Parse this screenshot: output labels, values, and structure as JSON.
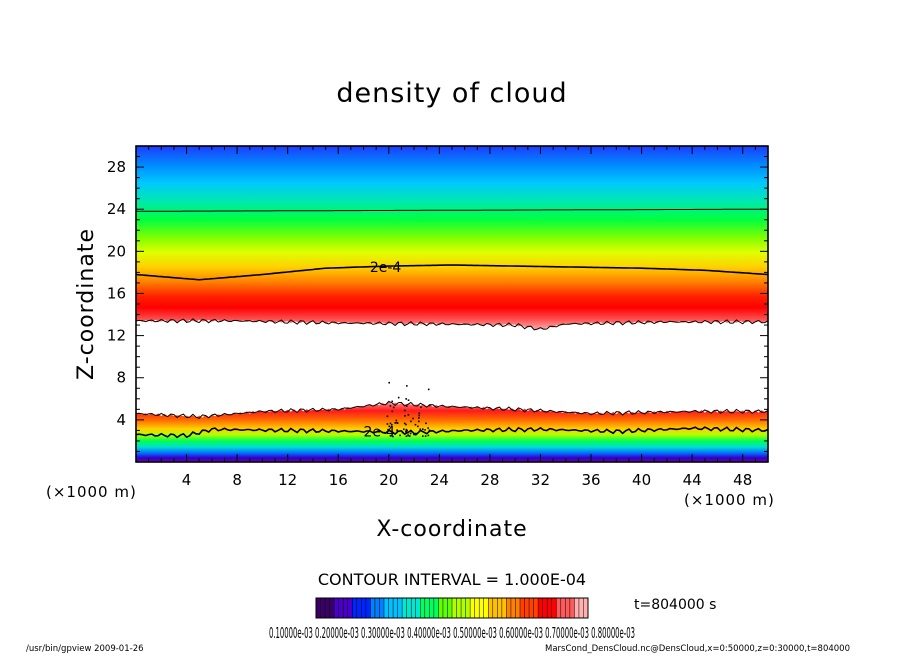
{
  "chart_data": {
    "type": "heatmap",
    "title": "density of cloud",
    "xlabel": "X-coordinate",
    "ylabel": "Z-coordinate",
    "x_unit": "(×1000 m)",
    "y_unit": "(×1000 m)",
    "xlim": [
      0,
      50
    ],
    "ylim": [
      0,
      30
    ],
    "x_ticks": [
      4,
      8,
      12,
      16,
      20,
      24,
      28,
      32,
      36,
      40,
      44,
      48
    ],
    "y_ticks": [
      4,
      8,
      12,
      16,
      20,
      24,
      28
    ],
    "contour_interval": "CONTOUR INTERVAL = 1.000E-04",
    "contour_labels": [
      {
        "text": "2e-4",
        "x": 18.5,
        "z": 18.5
      },
      {
        "text": "2e-4",
        "x": 18.0,
        "z": 2.9
      }
    ],
    "upper_band": {
      "contour_2e4_z": [
        [
          0,
          17.8
        ],
        [
          5,
          17.3
        ],
        [
          10,
          17.8
        ],
        [
          15,
          18.4
        ],
        [
          20,
          18.6
        ],
        [
          25,
          18.7
        ],
        [
          30,
          18.6
        ],
        [
          35,
          18.5
        ],
        [
          40,
          18.4
        ],
        [
          45,
          18.2
        ],
        [
          50,
          17.8
        ]
      ],
      "top_contour_z": 23.8,
      "bottom_edge_z": [
        [
          0,
          13.4
        ],
        [
          8,
          13.4
        ],
        [
          16,
          13.2
        ],
        [
          24,
          13.1
        ],
        [
          30,
          13.0
        ],
        [
          32,
          12.6
        ],
        [
          34,
          13.1
        ],
        [
          42,
          13.3
        ],
        [
          50,
          13.3
        ]
      ],
      "max_z": 15.5
    },
    "lower_band": {
      "top_edge_z": [
        [
          0,
          4.6
        ],
        [
          5,
          4.3
        ],
        [
          10,
          4.8
        ],
        [
          16,
          5.0
        ],
        [
          20,
          5.6
        ],
        [
          24,
          5.3
        ],
        [
          30,
          5.0
        ],
        [
          36,
          4.6
        ],
        [
          44,
          4.8
        ],
        [
          50,
          4.8
        ]
      ],
      "contour_2e4_z": [
        [
          0,
          2.6
        ],
        [
          4,
          2.5
        ],
        [
          6,
          3.1
        ],
        [
          12,
          3.0
        ],
        [
          18,
          2.9
        ],
        [
          22,
          2.8
        ],
        [
          26,
          3.0
        ],
        [
          32,
          3.1
        ],
        [
          38,
          2.9
        ],
        [
          44,
          3.2
        ],
        [
          50,
          3.0
        ]
      ],
      "max_z": 3.8
    },
    "colorbar": {
      "labels": "0.10000e-03 0.20000e-03 0.30000e-03 0.40000e-03 0.50000e-03 0.60000e-03 0.70000e-03 0.80000e-03",
      "colors": [
        "#3b0068",
        "#4a00c8",
        "#0026ff",
        "#0080ff",
        "#00c0ff",
        "#00e8d0",
        "#00ff60",
        "#60ff00",
        "#b0ff00",
        "#ffff00",
        "#ffc000",
        "#ff8000",
        "#ff4000",
        "#ff0000",
        "#ff5a5a",
        "#ffb0b0"
      ]
    },
    "time_label": "t=804000 s"
  },
  "footer": {
    "left": "/usr/bin/gpview   2009-01-26",
    "right": "MarsCond_DensCloud.nc@DensCloud,x=0:50000,z=0:30000,t=804000"
  }
}
